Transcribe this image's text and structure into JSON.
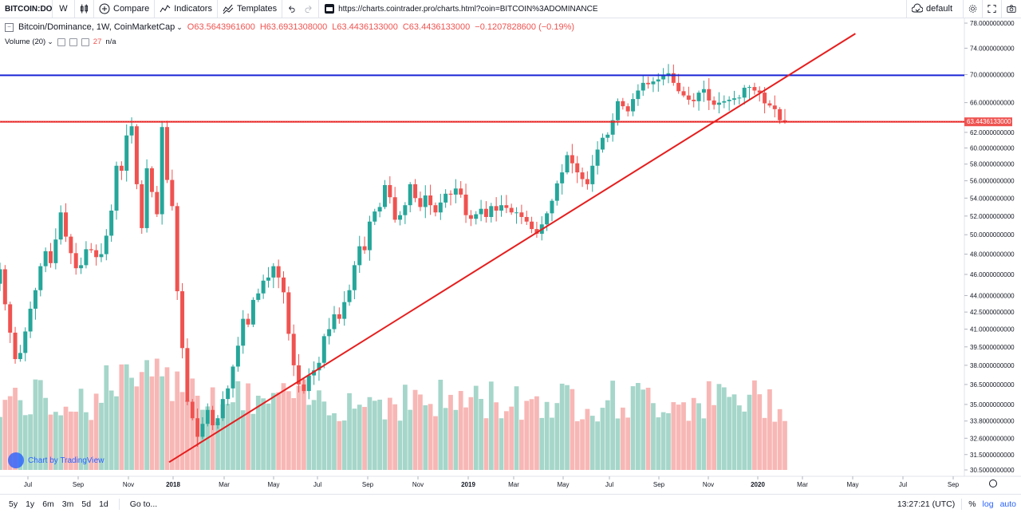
{
  "toolbar": {
    "symbol": "BITCOIN:DO",
    "interval": "W",
    "compare_label": "Compare",
    "indicators_label": "Indicators",
    "templates_label": "Templates",
    "url": "https://charts.cointrader.pro/charts.html?coin=BITCOIN%3ADOMINANCE",
    "layout_label": "default"
  },
  "legend": {
    "title": "Bitcoin/Dominance, 1W, CoinMarketCap",
    "open": "O63.5643961600",
    "high": "H63.6931308000",
    "low": "L63.4436133000",
    "close": "C63.4436133000",
    "change": "−0.1207828600 (−0.19%)",
    "volume_label": "Volume (20)",
    "volume_value": "27",
    "volume_na": "n/a"
  },
  "watermark": "Chart by TradingView",
  "bottombar": {
    "ranges": [
      "5y",
      "1y",
      "6m",
      "3m",
      "5d",
      "1d"
    ],
    "goto_label": "Go to...",
    "clock": "13:27:21 (UTC)",
    "percent_label": "%",
    "log_label": "log",
    "auto_label": "auto"
  },
  "colors": {
    "up": "#26a69a",
    "down": "#ef5350",
    "up_volume": "#a5d6c9",
    "down_volume": "#f7b7b5",
    "support_line": "#e61e1e",
    "resistance_line": "#1a24d6",
    "trend_line": "#e61e1e"
  },
  "chart_data": {
    "type": "candlestick",
    "title": "Bitcoin/Dominance, 1W, CoinMarketCap",
    "x_tick_labels": [
      "Jul",
      "Sep",
      "Nov",
      "2018",
      "Mar",
      "May",
      "Jul",
      "Sep",
      "Nov",
      "2019",
      "Mar",
      "May",
      "Jul",
      "Sep",
      "Nov",
      "2020",
      "Mar",
      "May",
      "Jul",
      "Sep"
    ],
    "y_tick_labels": [
      "30.5000000000",
      "31.5000000000",
      "32.6000000000",
      "33.8000000000",
      "35.0000000000",
      "36.5000000000",
      "38.0000000000",
      "39.5000000000",
      "41.0000000000",
      "42.5000000000",
      "44.0000000000",
      "46.0000000000",
      "48.0000000000",
      "50.0000000000",
      "52.0000000000",
      "54.0000000000",
      "56.0000000000",
      "58.0000000000",
      "60.0000000000",
      "62.0000000000",
      "66.0000000000",
      "70.0000000000",
      "74.0000000000",
      "78.0000000000"
    ],
    "y_scale": "log",
    "last_price_label": "63.4436133000",
    "horizontal_lines": [
      {
        "name": "resistance",
        "value": 69.9,
        "color": "blue"
      },
      {
        "name": "support",
        "value": 63.4,
        "color": "red"
      }
    ],
    "trend_line": {
      "start": {
        "date": "2018-01",
        "value": 31.0
      },
      "end": {
        "date": "2020-05",
        "value": 76.3
      }
    },
    "closes": [
      46.5,
      43.2,
      40.7,
      38.5,
      39.0,
      40.8,
      42.8,
      44.5,
      46.8,
      48.3,
      47.1,
      49.5,
      52.4,
      49.8,
      48.1,
      46.6,
      46.9,
      48.5,
      48.4,
      47.7,
      48.0,
      49.9,
      52.6,
      57.8,
      57.2,
      61.6,
      62.8,
      55.6,
      50.7,
      57.5,
      54.7,
      52.2,
      62.7,
      56.1,
      53.1,
      44.4,
      39.4,
      35.2,
      34.0,
      32.7,
      33.6,
      34.6,
      33.5,
      34.0,
      35.4,
      36.2,
      37.9,
      39.6,
      41.9,
      41.4,
      43.6,
      44.2,
      45.4,
      45.7,
      46.8,
      45.7,
      44.3,
      40.6,
      38.0,
      36.5,
      36.0,
      37.2,
      37.6,
      38.2,
      40.4,
      41.0,
      42.3,
      41.9,
      43.4,
      44.5,
      46.9,
      48.8,
      48.4,
      51.4,
      52.5,
      53.0,
      55.5,
      54.1,
      51.6,
      52.1,
      53.2,
      55.6,
      54.0,
      53.0,
      54.3,
      53.2,
      52.4,
      53.5,
      54.5,
      54.4,
      55.1,
      54.4,
      52.1,
      51.7,
      52.2,
      52.8,
      51.9,
      53.1,
      52.6,
      53.2,
      52.9,
      52.4,
      52.4,
      51.9,
      51.4,
      50.6,
      50.1,
      51.1,
      52.3,
      53.7,
      55.7,
      57.0,
      59.1,
      58.1,
      57.0,
      56.2,
      55.6,
      57.8,
      59.8,
      61.3,
      61.7,
      63.6,
      66.2,
      65.5,
      64.8,
      66.5,
      67.7,
      68.8,
      68.6,
      69.0,
      69.3,
      70.0,
      70.2,
      68.8,
      67.6,
      67.0,
      66.4,
      66.2,
      67.4,
      67.9,
      66.3,
      65.7,
      66.0,
      66.2,
      66.4,
      66.6,
      66.7,
      68.1,
      68.2,
      67.7,
      67.4,
      65.9,
      65.6,
      65.1,
      63.6,
      63.4
    ],
    "series": [
      {
        "name": "Volume (20)",
        "type": "histogram"
      }
    ]
  }
}
